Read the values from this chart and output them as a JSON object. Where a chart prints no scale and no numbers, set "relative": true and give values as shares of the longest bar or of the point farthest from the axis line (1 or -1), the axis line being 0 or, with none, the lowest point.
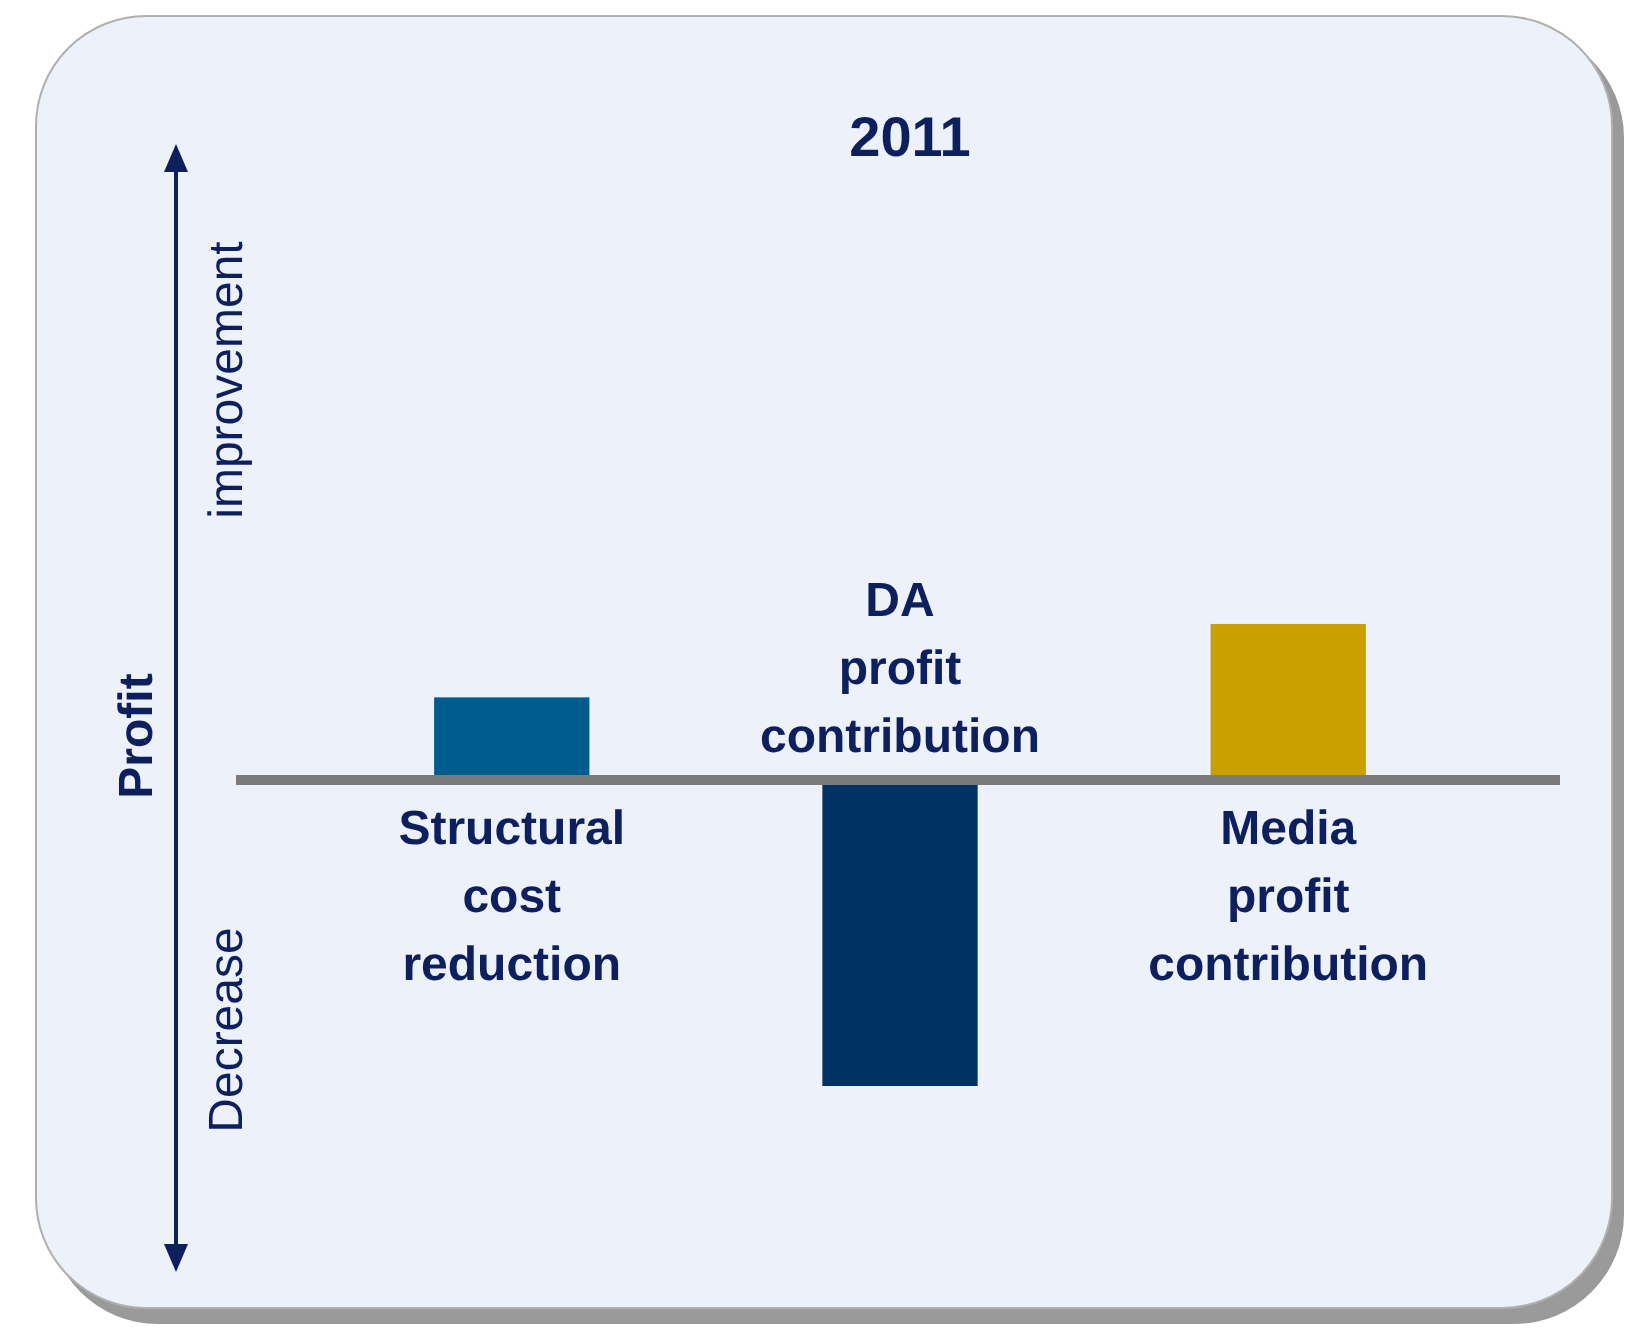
{
  "chart_data": {
    "type": "bar",
    "title": "2011",
    "ylabel": "Profit",
    "relative": true,
    "annotations": [
      "improvement",
      "Decrease"
    ],
    "categories": [
      "Structural cost reduction",
      "DA profit contribution",
      "Media profit contribution"
    ],
    "values": [
      0.27,
      -1,
      0.51
    ],
    "colors": [
      "#005b8e",
      "#003263",
      "#c9a000"
    ]
  }
}
